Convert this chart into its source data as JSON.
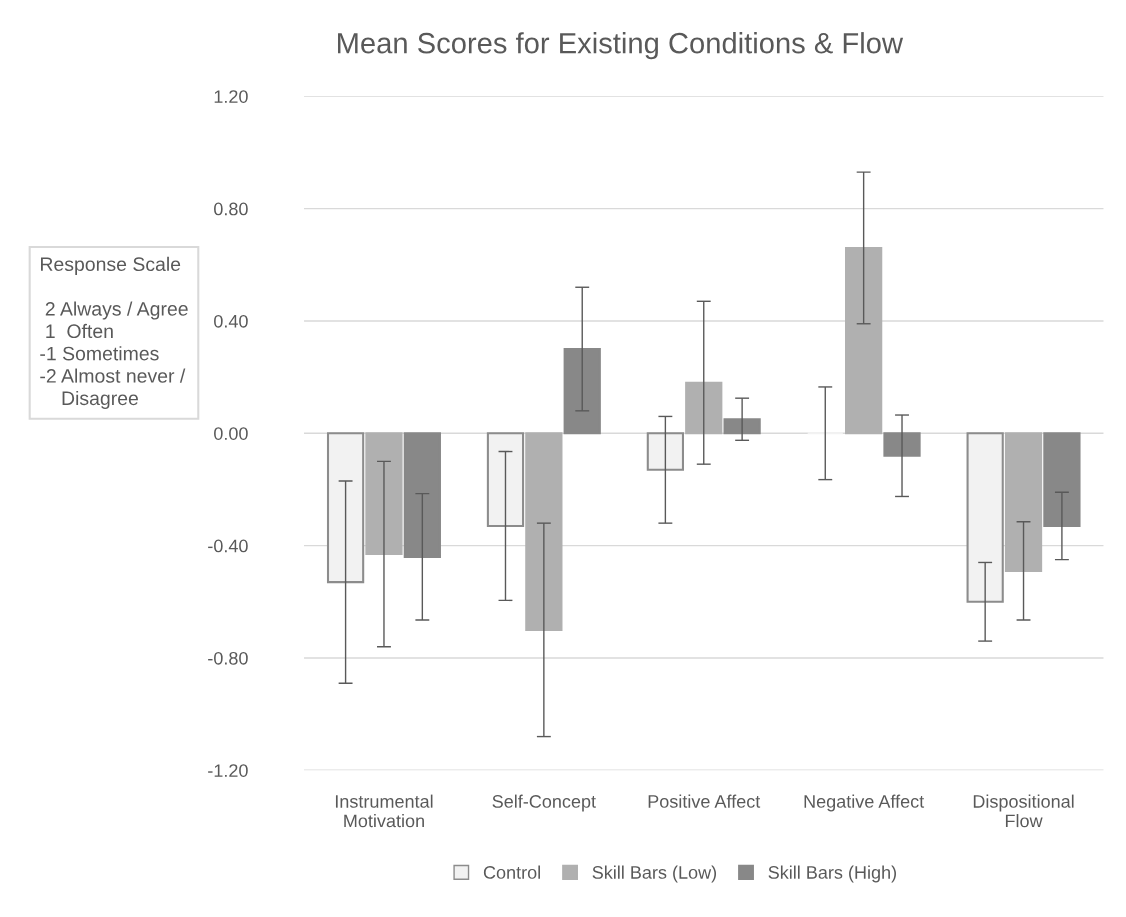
{
  "chart_data": {
    "type": "bar",
    "title": "Mean Scores for Existing Conditions & Flow",
    "categories": [
      "Instrumental\nMotivation",
      "Self-Concept",
      "Positive Affect",
      "Negative Affect",
      "Dispositional\nFlow"
    ],
    "series": [
      {
        "name": "Control",
        "color": "#f2f2f2",
        "values": [
          -0.53,
          -0.33,
          -0.13,
          0.0,
          -0.6
        ],
        "errors": [
          0.36,
          0.265,
          0.19,
          0.165,
          0.14
        ]
      },
      {
        "name": "Skill Bars (Low)",
        "color": "#b0b0b0",
        "values": [
          -0.43,
          -0.7,
          0.18,
          0.66,
          -0.49
        ],
        "errors": [
          0.33,
          0.38,
          0.29,
          0.27,
          0.175
        ]
      },
      {
        "name": "Skill Bars (High)",
        "color": "#888888",
        "values": [
          -0.44,
          0.3,
          0.05,
          -0.08,
          -0.33
        ],
        "errors": [
          0.225,
          0.22,
          0.075,
          0.145,
          0.12
        ]
      }
    ],
    "ylim": [
      -1.2,
      1.2
    ],
    "yticks": [
      {
        "value": -1.2,
        "label": "-1.20"
      },
      {
        "value": -0.8,
        "label": "-0.80"
      },
      {
        "value": -0.4,
        "label": "-0.40"
      },
      {
        "value": 0,
        "label": "0.00"
      },
      {
        "value": 0.4,
        "label": "0.40"
      },
      {
        "value": 0.8,
        "label": "0.80"
      },
      {
        "value": 1.2,
        "label": "1.20"
      }
    ],
    "grid": "y",
    "legend": "bottom",
    "annotations": [
      "Response Scale\n\n 2 Always / Agree\n 1  Often\n-1 Sometimes\n-2 Almost never /\n    Disagree"
    ]
  }
}
